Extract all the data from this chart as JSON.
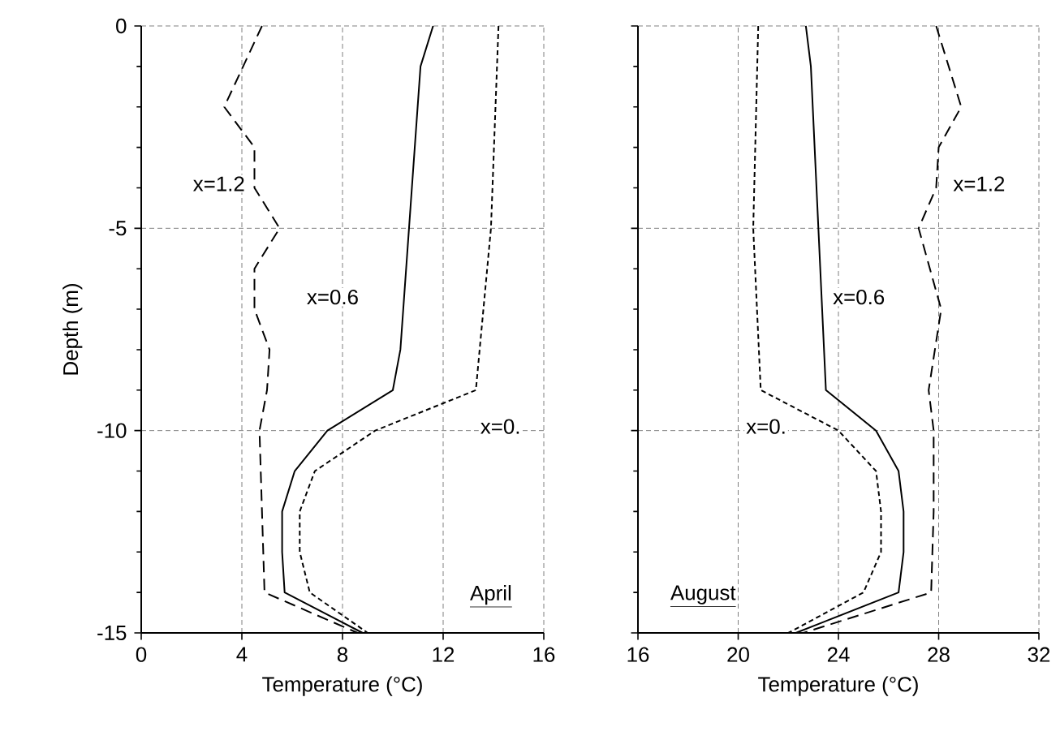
{
  "chart_data": [
    {
      "type": "line",
      "xlabel": "Temperature (°C)",
      "ylabel": "Depth (m)",
      "annotations": [
        "April"
      ],
      "xlim": [
        0,
        16
      ],
      "xticks": [
        0,
        4,
        8,
        12,
        16
      ],
      "ylim": [
        -15,
        0
      ],
      "yticks": [
        -15,
        -10,
        -5,
        0
      ],
      "grid": true,
      "series": [
        {
          "name": "x=0.",
          "color": "#000000",
          "line_style": "dotted",
          "x": [
            14.2,
            13.9,
            13.3,
            9.3,
            6.9,
            6.3,
            6.3,
            6.7,
            9.0
          ],
          "values": [
            0,
            -5,
            -9,
            -10,
            -11,
            -12,
            -13,
            -14,
            -15
          ]
        },
        {
          "name": "x=0.6",
          "color": "#000000",
          "line_style": "solid",
          "x": [
            11.6,
            11.1,
            10.3,
            10.0,
            7.4,
            6.1,
            5.6,
            5.6,
            5.7,
            8.8
          ],
          "values": [
            0,
            -1,
            -8,
            -9,
            -10,
            -11,
            -12,
            -13,
            -14,
            -15
          ]
        },
        {
          "name": "x=1.2",
          "color": "#000000",
          "line_style": "dashed",
          "x": [
            4.8,
            3.3,
            4.5,
            4.5,
            5.5,
            4.5,
            4.5,
            5.1,
            5.0,
            4.7,
            4.9,
            8.6
          ],
          "values": [
            0,
            -2,
            -3,
            -4,
            -5,
            -6,
            -7,
            -8,
            -9,
            -10,
            -14,
            -15
          ]
        }
      ]
    },
    {
      "type": "line",
      "xlabel": "Temperature (°C)",
      "annotations": [
        "August"
      ],
      "xlim": [
        16,
        32
      ],
      "xticks": [
        16,
        20,
        24,
        28,
        32
      ],
      "ylim": [
        -15,
        0
      ],
      "yticks": [
        -15,
        -10,
        -5,
        0
      ],
      "tick_labels": "x",
      "grid": true,
      "series": [
        {
          "name": "x=0.",
          "color": "#000000",
          "line_style": "dotted",
          "x": [
            20.8,
            20.6,
            20.9,
            24.0,
            25.5,
            25.7,
            25.7,
            25.0,
            22.0
          ],
          "values": [
            0,
            -5,
            -9,
            -10,
            -11,
            -12,
            -13,
            -14,
            -15
          ]
        },
        {
          "name": "x=0.6",
          "color": "#000000",
          "line_style": "solid",
          "x": [
            22.7,
            22.9,
            23.5,
            25.5,
            26.4,
            26.6,
            26.6,
            26.4,
            22.3
          ],
          "values": [
            0,
            -1,
            -9,
            -10,
            -11,
            -12,
            -13,
            -14,
            -15
          ]
        },
        {
          "name": "x=1.2",
          "color": "#000000",
          "line_style": "dashed",
          "x": [
            27.9,
            28.9,
            28.0,
            27.9,
            27.2,
            28.1,
            27.6,
            27.8,
            27.8,
            27.7,
            22.6
          ],
          "values": [
            0,
            -2,
            -3,
            -4,
            -5,
            -7,
            -9,
            -10,
            -12,
            -14,
            -15
          ]
        }
      ]
    }
  ]
}
